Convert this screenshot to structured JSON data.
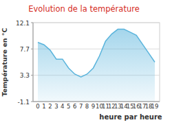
{
  "chart_data": {
    "type": "area",
    "title": "Evolution de la température",
    "x_label": "heure par heure",
    "y_label": "Température en °C",
    "categories": [
      "0",
      "1",
      "2",
      "3",
      "4",
      "5",
      "6",
      "7",
      "8",
      "9",
      "10",
      "11",
      "12",
      "13",
      "14",
      "15",
      "16",
      "17",
      "18",
      "19"
    ],
    "values": [
      8.8,
      8.4,
      7.5,
      6.0,
      6.0,
      4.5,
      3.5,
      3.0,
      3.5,
      4.5,
      6.5,
      9.0,
      10.2,
      11.0,
      11.0,
      10.5,
      10.0,
      8.5,
      7.0,
      5.5
    ],
    "color": "#5ab4dc",
    "ylim": [
      -1.1,
      12.1
    ],
    "yticks": [
      -1.1,
      3.3,
      7.7,
      12.1
    ],
    "grid": true
  }
}
